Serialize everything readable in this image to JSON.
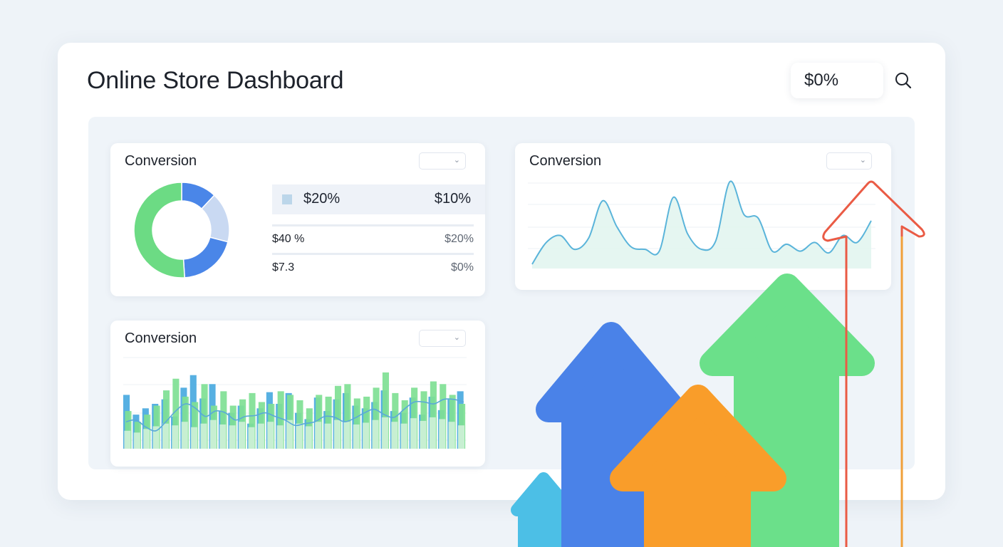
{
  "header": {
    "title": "Online Store Dashboard",
    "value": "$0%",
    "search_icon": "search-icon"
  },
  "cards": {
    "donut": {
      "title": "Conversion",
      "legend": {
        "label": "$20%",
        "value": "$10%"
      },
      "rows": [
        {
          "label": "$40 %",
          "value": "$20%"
        },
        {
          "label": "$7.3",
          "value": "$0%"
        }
      ]
    },
    "line": {
      "title": "Conversion"
    },
    "bars": {
      "title": "Conversion"
    }
  },
  "chart_data": [
    {
      "type": "pie",
      "donut": true,
      "values": [
        12,
        17,
        20,
        51
      ],
      "colors": [
        "#4a86e8",
        "#c9d9f2",
        "#4a86e8",
        "#6cdb84"
      ]
    },
    {
      "type": "area",
      "grid": true,
      "ylim": [
        0,
        100
      ],
      "values": [
        5,
        30,
        38,
        22,
        35,
        78,
        48,
        25,
        22,
        20,
        82,
        40,
        22,
        32,
        100,
        62,
        58,
        20,
        28,
        20,
        30,
        18,
        38,
        30,
        55
      ],
      "color": "#5ab4da",
      "fill": "#e2f5ef"
    },
    {
      "type": "bar",
      "grid": true,
      "ylim": [
        0,
        100
      ],
      "series": [
        {
          "name": "",
          "color": "#49a9df",
          "values": [
            60,
            38,
            45,
            50,
            55,
            36,
            68,
            82,
            56,
            72,
            42,
            40,
            48,
            28,
            45,
            63,
            50,
            62,
            40,
            33,
            57,
            42,
            55,
            62,
            48,
            45,
            52,
            65,
            42,
            40,
            57,
            38,
            58,
            43,
            55,
            64
          ]
        },
        {
          "name": "",
          "color": "#7fdf94",
          "values": [
            42,
            30,
            38,
            48,
            65,
            78,
            58,
            52,
            72,
            48,
            64,
            48,
            55,
            62,
            52,
            50,
            64,
            60,
            54,
            45,
            60,
            58,
            70,
            72,
            56,
            58,
            68,
            85,
            62,
            54,
            68,
            64,
            75,
            72,
            60,
            50
          ]
        },
        {
          "name": "",
          "color": "#d5f2dc",
          "values": [
            20,
            18,
            22,
            25,
            28,
            26,
            30,
            24,
            28,
            32,
            27,
            26,
            30,
            24,
            28,
            30,
            26,
            32,
            28,
            25,
            30,
            28,
            32,
            30,
            27,
            29,
            32,
            35,
            30,
            28,
            34,
            31,
            35,
            33,
            30,
            26
          ]
        }
      ],
      "trend": [
        30,
        32,
        24,
        20,
        30,
        42,
        50,
        45,
        36,
        42,
        40,
        32,
        36,
        37,
        40,
        36,
        32,
        26,
        28,
        30,
        36,
        35,
        30,
        34,
        40,
        44,
        38,
        35,
        44,
        52,
        52,
        50,
        55,
        55,
        52
      ]
    }
  ],
  "decoration": {
    "arrows": [
      "cyan-arrow",
      "blue-arrow",
      "orange-arrow",
      "green-arrow",
      "red-outline-arrow"
    ],
    "colors": {
      "cyan": "#4cbfe6",
      "blue": "#4a82e8",
      "orange": "#f99d2a",
      "green": "#6be08a",
      "red": "#ea5b45",
      "amber": "#f0a03a"
    }
  }
}
